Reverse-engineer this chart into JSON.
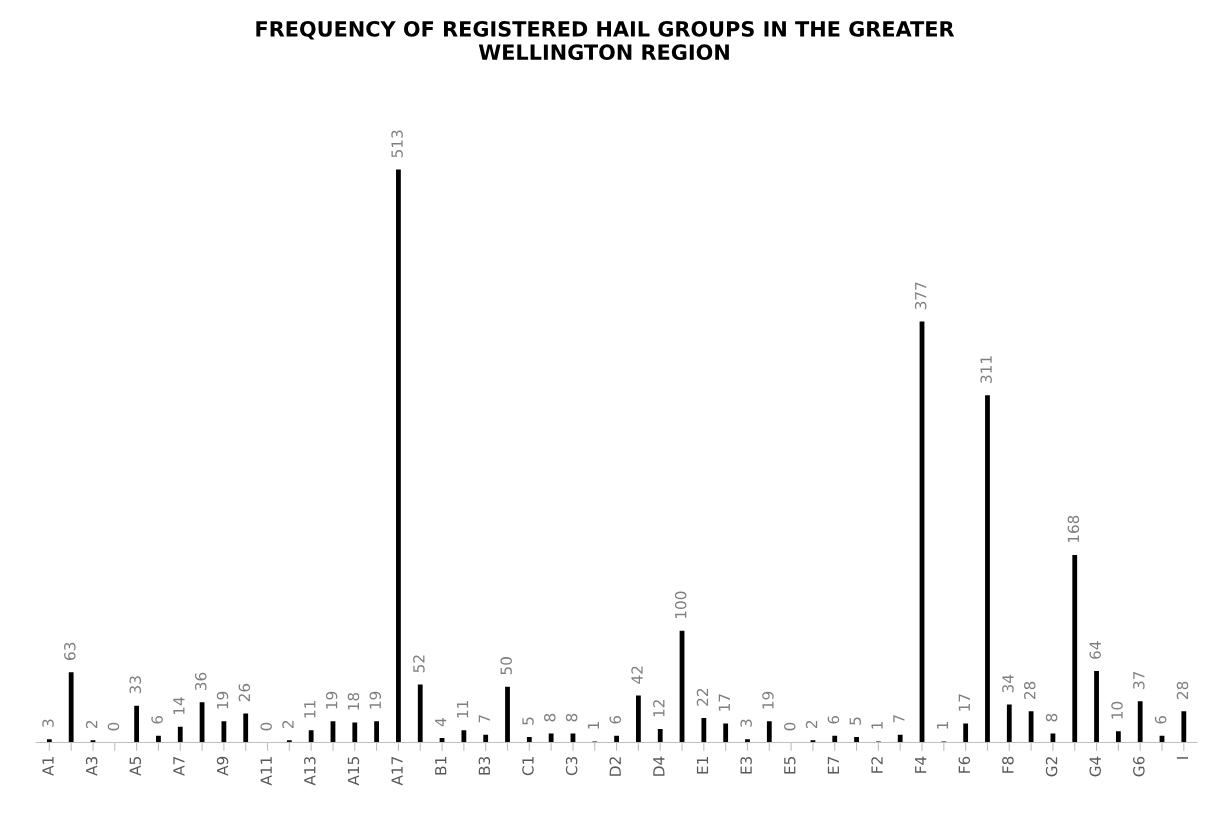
{
  "chart_data": {
    "type": "bar",
    "title": "FREQUENCY OF REGISTERED HAIL GROUPS IN THE GREATER\nWELLINGTON REGION",
    "categories": [
      "A1",
      null,
      "A3",
      null,
      "A5",
      null,
      "A7",
      null,
      "A9",
      null,
      "A11",
      null,
      "A13",
      null,
      "A15",
      null,
      "A17",
      null,
      "B1",
      null,
      "B3",
      null,
      "C1",
      null,
      "C3",
      null,
      "D2",
      null,
      "D4",
      null,
      "E1",
      null,
      "E3",
      null,
      "E5",
      null,
      "E7",
      null,
      "F2",
      null,
      "F4",
      null,
      "F6",
      null,
      "F8",
      null,
      "G2",
      null,
      "G4",
      null,
      "G6",
      null,
      "I"
    ],
    "values": [
      3,
      63,
      2,
      0,
      33,
      6,
      14,
      36,
      19,
      26,
      0,
      2,
      11,
      19,
      18,
      19,
      513,
      52,
      4,
      11,
      7,
      50,
      5,
      8,
      8,
      1,
      6,
      42,
      12,
      100,
      22,
      17,
      3,
      19,
      0,
      2,
      6,
      5,
      1,
      7,
      377,
      1,
      17,
      311,
      34,
      28,
      8,
      168,
      64,
      10,
      37,
      6,
      28
    ],
    "color": "#000000",
    "data_labels": true,
    "tick_labels": "x"
  }
}
